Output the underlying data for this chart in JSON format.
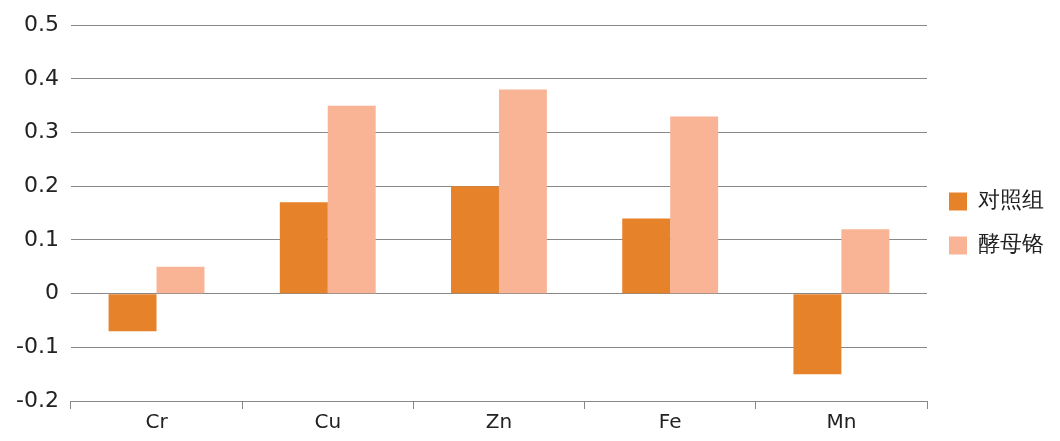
{
  "chart_data": {
    "type": "bar",
    "categories": [
      "Cr",
      "Cu",
      "Zn",
      "Fe",
      "Mn"
    ],
    "series": [
      {
        "name": "对照组",
        "color": "#e6822a",
        "values": [
          -0.07,
          0.17,
          0.2,
          0.14,
          -0.15
        ]
      },
      {
        "name": "酵母铬",
        "color": "#f9b496",
        "values": [
          0.05,
          0.35,
          0.38,
          0.33,
          0.12
        ]
      }
    ],
    "ylim": [
      -0.2,
      0.5
    ],
    "yticks": [
      -0.2,
      -0.1,
      0,
      0.1,
      0.2,
      0.3,
      0.4,
      0.5
    ],
    "grid": "y",
    "legend": "right"
  }
}
